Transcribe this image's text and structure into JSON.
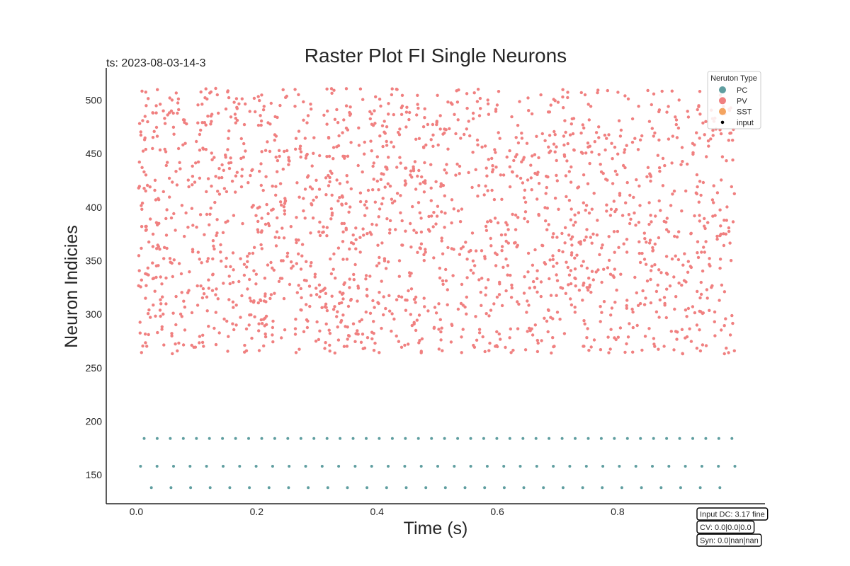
{
  "chart_data": {
    "type": "scatter",
    "title": "Raster Plot FI Single Neurons",
    "xlabel": "Time (s)",
    "ylabel": "Neuron Indicies",
    "xlim": [
      -0.05,
      1.045
    ],
    "ylim": [
      123,
      530
    ],
    "xticks": [
      0.0,
      0.2,
      0.4,
      0.6,
      0.8
    ],
    "xtick_labels": [
      "0.0",
      "0.2",
      "0.4",
      "0.6",
      "0.8"
    ],
    "yticks": [
      150,
      200,
      250,
      300,
      350,
      400,
      450,
      500
    ],
    "ytick_labels": [
      "150",
      "200",
      "250",
      "300",
      "350",
      "400",
      "450",
      "500"
    ],
    "grid": false,
    "legend_title": "Neruton Type",
    "legend_position": "top-right",
    "legend": [
      {
        "name": "PC",
        "color": "#5f9ea0",
        "marker": "circle"
      },
      {
        "name": "PV",
        "color": "#f08080",
        "marker": "circle"
      },
      {
        "name": "SST",
        "color": "#f4a460",
        "marker": "circle"
      },
      {
        "name": "input",
        "color": "#000000",
        "marker": "small-dot"
      }
    ],
    "pv_band": {
      "neuron_min": 263,
      "neuron_max": 511,
      "t_min": 0.003,
      "t_max": 0.995,
      "spike_count_approx": 1900
    },
    "series": [
      {
        "name": "PC",
        "color": "#5f9ea0",
        "trains": [
          {
            "neuron": 184,
            "t_start": 0.013,
            "t_end": 0.99,
            "n_spikes": 46
          },
          {
            "neuron": 158,
            "t_start": 0.007,
            "t_end": 0.995,
            "n_spikes": 37
          },
          {
            "neuron": 138,
            "t_start": 0.025,
            "t_end": 0.97,
            "n_spikes": 30
          }
        ]
      }
    ]
  },
  "header": {
    "timestamp_label": "ts: 2023-08-03-14-3"
  },
  "info_boxes": [
    "Input DC: 3.17 fine",
    "CV: 0.0|0.0|0.0",
    "Syn: 0.0|nan|nan"
  ],
  "colors": {
    "pc": "#5f9ea0",
    "pv": "#f08080",
    "sst": "#f4a460",
    "input": "#000000",
    "axis": "#262626"
  }
}
